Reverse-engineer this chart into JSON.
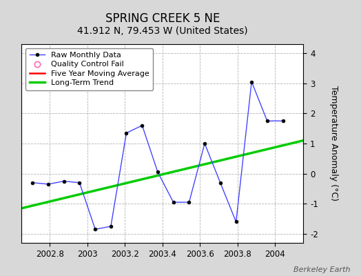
{
  "title": "SPRING CREEK 5 NE",
  "subtitle": "41.912 N, 79.453 W (United States)",
  "credit": "Berkeley Earth",
  "ylabel": "Temperature Anomaly (°C)",
  "xlim": [
    2002.65,
    2004.15
  ],
  "ylim": [
    -2.3,
    4.3
  ],
  "yticks": [
    -2,
    -1,
    0,
    1,
    2,
    3,
    4
  ],
  "xticks": [
    2002.8,
    2003.0,
    2003.2,
    2003.4,
    2003.6,
    2003.8,
    2004.0
  ],
  "xtick_labels": [
    "2002.8",
    "2003",
    "2003.2",
    "2003.4",
    "2003.6",
    "2003.8",
    "2004"
  ],
  "raw_x": [
    2002.708,
    2002.792,
    2002.875,
    2002.958,
    2003.042,
    2003.125,
    2003.208,
    2003.292,
    2003.375,
    2003.458,
    2003.542,
    2003.625,
    2003.708,
    2003.792,
    2003.875,
    2003.958,
    2004.042
  ],
  "raw_y": [
    -0.3,
    -0.35,
    -0.25,
    -0.3,
    -1.85,
    -1.75,
    1.35,
    1.6,
    0.05,
    -0.95,
    -0.95,
    1.0,
    -0.3,
    -1.6,
    3.05,
    1.75,
    1.75
  ],
  "trend_x": [
    2002.65,
    2004.15
  ],
  "trend_y": [
    -1.15,
    1.1
  ],
  "raw_color": "#4444ff",
  "raw_marker_color": "#000000",
  "trend_color": "#00cc00",
  "moving_avg_color": "#ff0000",
  "qc_marker_color": "#ff69b4",
  "background_color": "#d8d8d8",
  "plot_bg_color": "#ffffff",
  "grid_color": "#aaaaaa",
  "title_fontsize": 12,
  "subtitle_fontsize": 10,
  "tick_fontsize": 8.5,
  "ylabel_fontsize": 9,
  "legend_fontsize": 8,
  "credit_fontsize": 8
}
